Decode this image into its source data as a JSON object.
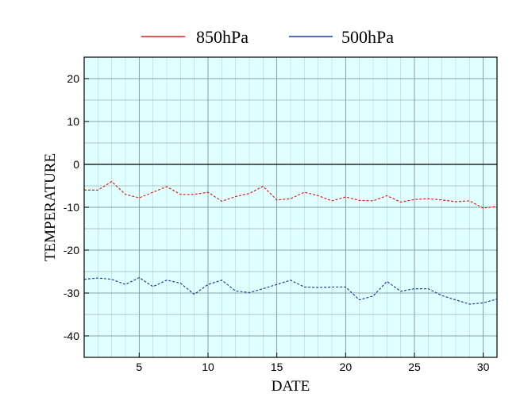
{
  "chart_data": {
    "type": "line",
    "xlabel": "DATE",
    "ylabel": "TEMPERATURE",
    "xlim": [
      1,
      31
    ],
    "ylim": [
      -45,
      25
    ],
    "x_ticks": [
      5,
      10,
      15,
      20,
      25,
      30
    ],
    "y_ticks": [
      20,
      10,
      0,
      -10,
      -20,
      -30,
      -40
    ],
    "x_minor_grid_step": 1,
    "y_minor_grid_step": 5,
    "grid": true,
    "zero_line": true,
    "plot_background": "#e0ffff",
    "legend_position": "top-center",
    "x": [
      1,
      2,
      3,
      4,
      5,
      6,
      7,
      8,
      9,
      10,
      11,
      12,
      13,
      14,
      15,
      16,
      17,
      18,
      19,
      20,
      21,
      22,
      23,
      24,
      25,
      26,
      27,
      28,
      29,
      30,
      31
    ],
    "series": [
      {
        "name": "850hPa",
        "color": "#e02020",
        "line_style": "dashed",
        "values": [
          -6.0,
          -6.0,
          -4.0,
          -7.0,
          -7.8,
          -6.5,
          -5.2,
          -7.0,
          -7.0,
          -6.5,
          -8.6,
          -7.5,
          -6.8,
          -5.1,
          -8.3,
          -8.0,
          -6.5,
          -7.3,
          -8.5,
          -7.6,
          -8.4,
          -8.5,
          -7.3,
          -8.8,
          -8.2,
          -8.0,
          -8.3,
          -8.7,
          -8.5,
          -10.2,
          -9.8
        ]
      },
      {
        "name": "500hPa",
        "color": "#1f3fa8",
        "line_style": "dashed",
        "values": [
          -26.8,
          -26.5,
          -26.8,
          -28.0,
          -26.4,
          -28.5,
          -27.0,
          -27.7,
          -30.3,
          -28.0,
          -27.0,
          -29.5,
          -29.9,
          -29.0,
          -28.0,
          -27.0,
          -28.6,
          -28.7,
          -28.6,
          -28.6,
          -31.6,
          -30.7,
          -27.3,
          -29.6,
          -29.0,
          -29.0,
          -30.6,
          -31.6,
          -32.6,
          -32.3,
          -31.4
        ]
      }
    ]
  }
}
